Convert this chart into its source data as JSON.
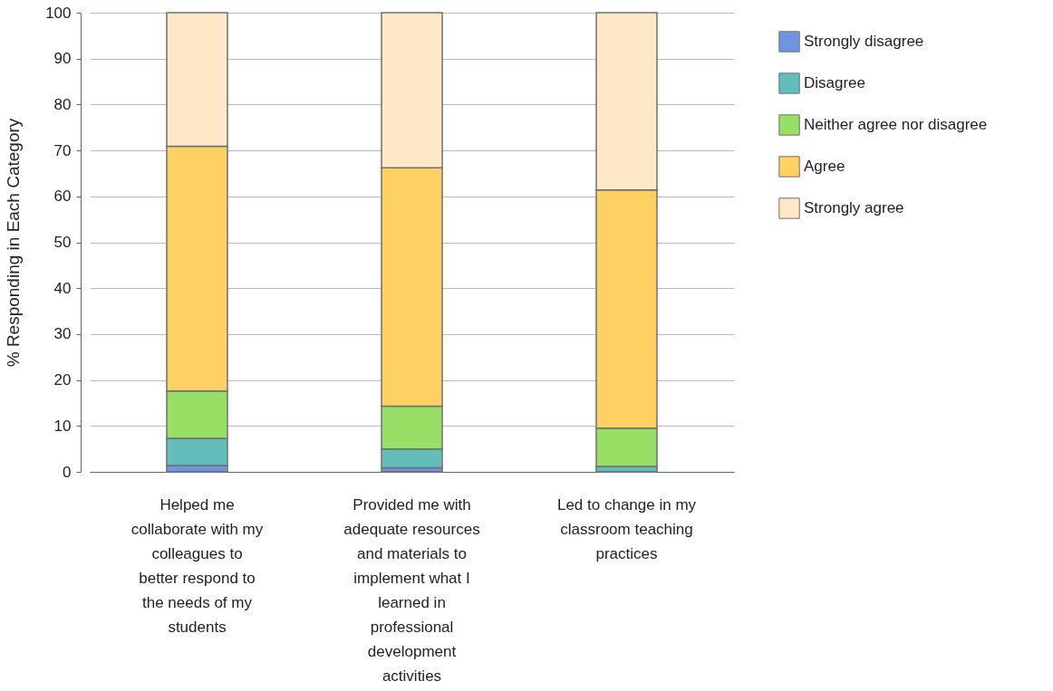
{
  "chart_data": {
    "type": "bar",
    "stacked": true,
    "ylabel": "% Responding in Each Category",
    "categories": [
      "Helped me collaborate with my colleagues to better respond to the needs of my students",
      "Provided me with adequate resources and materials to implement what I learned in professional development activities",
      "Led to change in my classroom teaching practices"
    ],
    "series": [
      {
        "name": "Strongly disagree",
        "color": "#6f95e0",
        "values": [
          1.4,
          0.9,
          0
        ]
      },
      {
        "name": "Disagree",
        "color": "#63bdbb",
        "values": [
          5.9,
          4.1,
          1.2
        ]
      },
      {
        "name": "Neither agree nor disagree",
        "color": "#98e065",
        "values": [
          10.3,
          9.3,
          8.3
        ]
      },
      {
        "name": "Agree",
        "color": "#ffd163",
        "values": [
          53.3,
          51.9,
          51.9
        ]
      },
      {
        "name": "Strongly agree",
        "color": "#ffe8c6",
        "values": [
          29.1,
          33.8,
          38.6
        ]
      }
    ],
    "ylim": [
      0,
      100
    ],
    "yticks": [
      0,
      10,
      20,
      30,
      40,
      50,
      60,
      70,
      80,
      90,
      100
    ],
    "grid": "y",
    "legend": "top right"
  }
}
